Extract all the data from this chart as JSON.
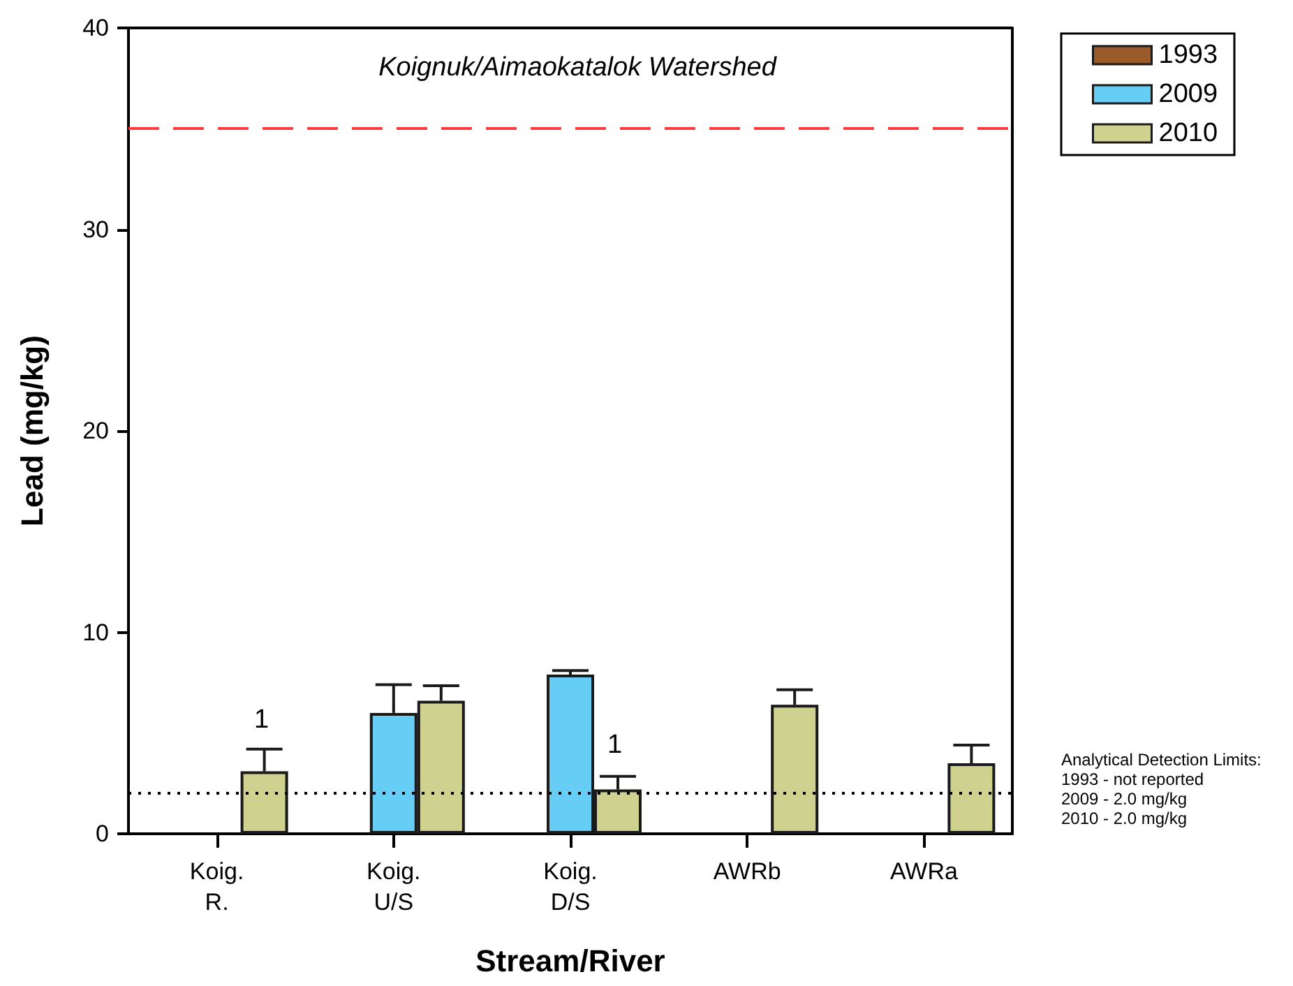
{
  "chart_data": {
    "type": "bar",
    "title": "Koignuk/Aimaokatalok Watershed",
    "xlabel": "Stream/River",
    "ylabel": "Lead (mg/kg)",
    "categories": [
      "Koig.\nR.",
      "Koig.\nU/S",
      "Koig.\nD/S",
      "AWRb",
      "AWRa"
    ],
    "series": [
      {
        "name": "1993",
        "color": "#9b5a2a",
        "values": [
          null,
          null,
          null,
          null,
          null
        ]
      },
      {
        "name": "2009",
        "color": "#66cef5",
        "values": [
          null,
          6.0,
          7.9,
          null,
          null
        ],
        "errors": [
          null,
          [
            6.0,
            7.4
          ],
          [
            7.9,
            8.1
          ],
          null,
          null
        ]
      },
      {
        "name": "2010",
        "color": "#cfd28f",
        "values": [
          3.1,
          6.6,
          2.2,
          6.4,
          3.5
        ],
        "errors": [
          [
            3.1,
            4.2
          ],
          [
            6.6,
            7.35
          ],
          [
            2.2,
            2.85
          ],
          [
            6.4,
            7.15
          ],
          [
            3.5,
            4.4
          ]
        ]
      }
    ],
    "ylim": [
      0,
      40
    ],
    "yticks": [
      0,
      10,
      20,
      30,
      40
    ],
    "grid": false,
    "legend": "top right",
    "ref_lines": [
      {
        "axis": "y",
        "value": 35,
        "color": "#ff3b3b",
        "line_style": "dashed"
      },
      {
        "axis": "y",
        "value": 2.0,
        "color": "#000000",
        "line_style": "dotted"
      }
    ],
    "annotations": [
      "1",
      "1",
      "Analytical Detection Limits:\n1993 - not reported\n2009 - 2.0 mg/kg\n2010 - 2.0 mg/kg"
    ]
  }
}
